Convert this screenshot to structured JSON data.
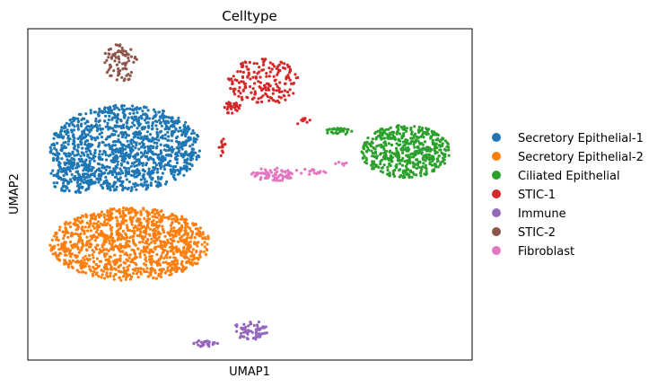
{
  "chart_data": {
    "type": "scatter",
    "title": "Celltype",
    "xlabel": "UMAP1",
    "ylabel": "UMAP2",
    "xlim": [
      0,
      100
    ],
    "ylim": [
      0,
      100
    ],
    "grid": false,
    "ticks": false,
    "legend_position": "right",
    "series": [
      {
        "name": "Secretory Epithelial-1",
        "color": "#1f77b4",
        "clusters": [
          {
            "cx": 22,
            "cy": 64,
            "rx": 17,
            "ry": 13,
            "n": 1250
          },
          {
            "cx": 10,
            "cy": 55,
            "rx": 5,
            "ry": 5,
            "n": 120
          }
        ]
      },
      {
        "name": "Secretory Epithelial-2",
        "color": "#ff7f0e",
        "clusters": [
          {
            "cx": 23,
            "cy": 35,
            "rx": 18,
            "ry": 11,
            "n": 1150
          }
        ]
      },
      {
        "name": "Ciliated Epithelial",
        "color": "#2ca02c",
        "clusters": [
          {
            "cx": 85,
            "cy": 63,
            "rx": 10,
            "ry": 8,
            "n": 520
          },
          {
            "cx": 70,
            "cy": 69,
            "rx": 3,
            "ry": 1,
            "n": 30
          }
        ]
      },
      {
        "name": "STIC-1",
        "color": "#d62728",
        "clusters": [
          {
            "cx": 53,
            "cy": 84,
            "rx": 8,
            "ry": 7,
            "n": 180
          },
          {
            "cx": 46,
            "cy": 76,
            "rx": 2,
            "ry": 2,
            "n": 30
          },
          {
            "cx": 44,
            "cy": 64,
            "rx": 1,
            "ry": 4,
            "n": 12
          },
          {
            "cx": 62,
            "cy": 72,
            "rx": 2,
            "ry": 1,
            "n": 10
          }
        ]
      },
      {
        "name": "Immune",
        "color": "#9467bd",
        "clusters": [
          {
            "cx": 50,
            "cy": 9,
            "rx": 4,
            "ry": 3,
            "n": 60
          },
          {
            "cx": 40,
            "cy": 5,
            "rx": 3,
            "ry": 1,
            "n": 25
          }
        ]
      },
      {
        "name": "STIC-2",
        "color": "#8c564b",
        "clusters": [
          {
            "cx": 21,
            "cy": 90,
            "rx": 4,
            "ry": 6,
            "n": 80
          }
        ]
      },
      {
        "name": "Fibroblast",
        "color": "#e377c2",
        "clusters": [
          {
            "cx": 55,
            "cy": 56,
            "rx": 5,
            "ry": 2,
            "n": 70
          },
          {
            "cx": 64,
            "cy": 57,
            "rx": 4,
            "ry": 1,
            "n": 15
          },
          {
            "cx": 70,
            "cy": 59,
            "rx": 2,
            "ry": 1,
            "n": 6
          }
        ]
      }
    ]
  }
}
